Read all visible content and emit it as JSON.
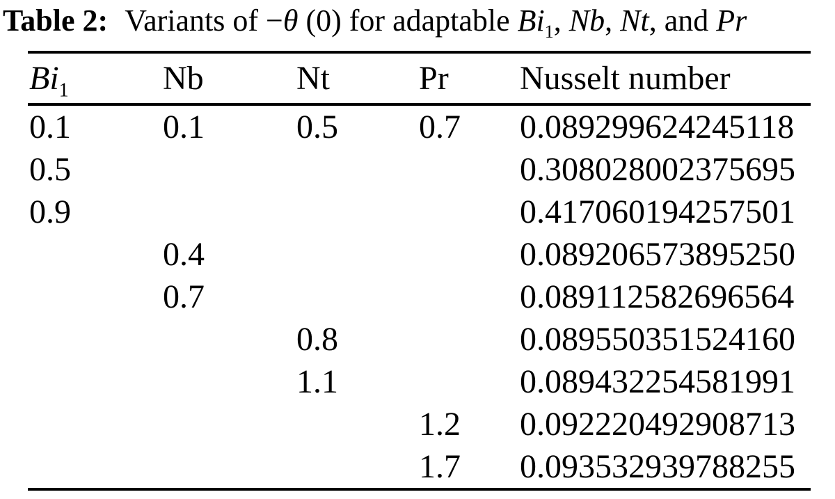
{
  "caption": {
    "label": "Table 2:",
    "part1": "Variants of −",
    "theta": "θ",
    "part2": " (0) for adaptable ",
    "var1": "Bi",
    "var1_sub": "1",
    "sep1": ", ",
    "var2": "Nb",
    "sep2": ", ",
    "var3": "Nt",
    "sep3": ", and ",
    "var4": "Pr"
  },
  "table": {
    "header": {
      "col1": "Bi",
      "col1_sub": "1",
      "col2": "Nb",
      "col3": "Nt",
      "col4": "Pr",
      "col5": "Nusselt number"
    },
    "rows": [
      [
        "0.1",
        "0.1",
        "0.5",
        "0.7",
        "0.089299624245118"
      ],
      [
        "0.5",
        "",
        "",
        "",
        "0.308028002375695"
      ],
      [
        "0.9",
        "",
        "",
        "",
        "0.417060194257501"
      ],
      [
        "",
        "0.4",
        "",
        "",
        "0.089206573895250"
      ],
      [
        "",
        "0.7",
        "",
        "",
        "0.089112582696564"
      ],
      [
        "",
        "",
        "0.8",
        "",
        "0.089550351524160"
      ],
      [
        "",
        "",
        "1.1",
        "",
        "0.089432254581991"
      ],
      [
        "",
        "",
        "",
        "1.2",
        "0.092220492908713"
      ],
      [
        "",
        "",
        "",
        "1.7",
        "0.093532939788255"
      ]
    ]
  },
  "colors": {
    "text": "#000000",
    "background": "#ffffff",
    "rule": "#000000"
  }
}
